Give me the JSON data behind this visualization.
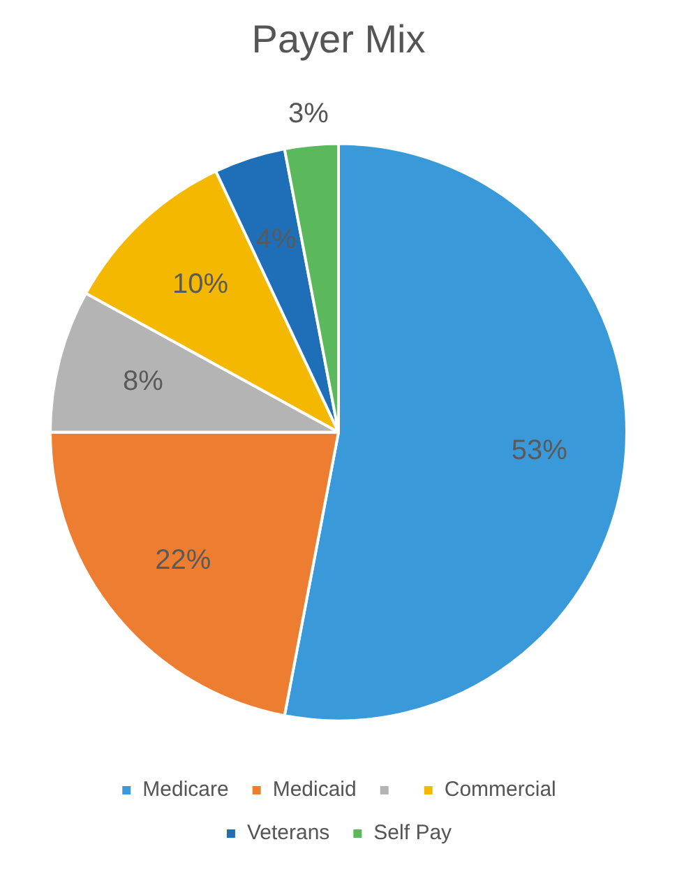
{
  "chart_data": {
    "type": "pie",
    "title": "Payer Mix",
    "categories": [
      "Medicare",
      "Medicaid",
      null,
      "Commercial",
      "Veterans",
      "Self Pay"
    ],
    "values": [
      53,
      22,
      8,
      10,
      4,
      3
    ],
    "colors": [
      "#3a9ad9",
      "#ed7d31",
      "#b4b4b4",
      "#f5b800",
      "#1f6fb8",
      "#5cb85c"
    ],
    "value_labels": [
      "53%",
      "22%",
      "8%",
      "10%",
      "4%",
      "3%"
    ],
    "legend": "bottom"
  }
}
